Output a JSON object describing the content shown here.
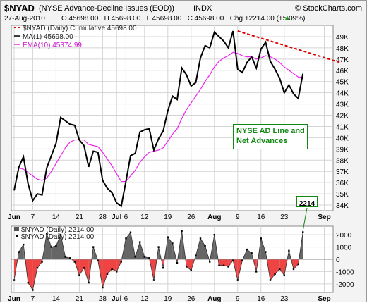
{
  "header": {
    "symbol": "$NYAD",
    "description": "(NYSE Advance-Decline Issues (EOD))",
    "exchange": "INDX",
    "copyright": "© StockCharts.com",
    "date": "27-Aug-2010",
    "quote": "O 45698.00   H 45698.00   L 45698.00   C 45698.00   Chg +2214.00 (+5.09%)",
    "quote_arrow": "▲"
  },
  "legend_main": [
    {
      "label": "$NYAD (Daily) Cumulative 45698.00",
      "color": "#dd0000",
      "style": "dashed"
    },
    {
      "label": "MA(1) 45698.00",
      "color": "#000000",
      "style": "solid"
    },
    {
      "label": "EMA(10) 45374.99",
      "color": "#ee22ee",
      "style": "solid"
    }
  ],
  "legend_lower": [
    {
      "label": "$NYAD (Daily) 2214.00",
      "color": "#555555",
      "style": "box"
    },
    {
      "label": "$NYAD (Daily) 2214.00",
      "color": "#000000",
      "style": "dot"
    }
  ],
  "annotation": {
    "line1": "NYSE AD Line and",
    "line2": "Net Advances",
    "color": "#118811"
  },
  "callout": {
    "value": "2214"
  },
  "chart_data": [
    {
      "type": "line",
      "title": "NYSE AD Line and Net Advances",
      "x": [
        "Jun 1",
        "Jun 2",
        "Jun 3",
        "Jun 4",
        "Jun 7",
        "Jun 8",
        "Jun 9",
        "Jun 10",
        "Jun 11",
        "Jun 14",
        "Jun 15",
        "Jun 16",
        "Jun 17",
        "Jun 18",
        "Jun 21",
        "Jun 22",
        "Jun 23",
        "Jun 24",
        "Jun 25",
        "Jun 28",
        "Jun 29",
        "Jun 30",
        "Jul 1",
        "Jul 2",
        "Jul 6",
        "Jul 7",
        "Jul 8",
        "Jul 9",
        "Jul 12",
        "Jul 13",
        "Jul 14",
        "Jul 15",
        "Jul 16",
        "Jul 19",
        "Jul 20",
        "Jul 21",
        "Jul 22",
        "Jul 23",
        "Jul 26",
        "Jul 27",
        "Jul 28",
        "Jul 29",
        "Jul 30",
        "Aug 2",
        "Aug 3",
        "Aug 4",
        "Aug 5",
        "Aug 6",
        "Aug 9",
        "Aug 10",
        "Aug 11",
        "Aug 12",
        "Aug 13",
        "Aug 16",
        "Aug 17",
        "Aug 18",
        "Aug 19",
        "Aug 20",
        "Aug 23",
        "Aug 24",
        "Aug 25",
        "Aug 26",
        "Aug 27"
      ],
      "series": [
        {
          "name": "MA(1) 45698.00",
          "values": [
            35300,
            37350,
            38300,
            35900,
            34400,
            35000,
            34900,
            37300,
            38400,
            39500,
            41800,
            41500,
            41200,
            41100,
            39800,
            39300,
            37400,
            38800,
            38700,
            36200,
            35500,
            35100,
            34200,
            33900,
            36100,
            38400,
            38600,
            40500,
            40700,
            40800,
            38900,
            39900,
            40600,
            42400,
            43700,
            43400,
            46200,
            45600,
            44600,
            44900,
            47100,
            48200,
            48000,
            49400,
            49000,
            48600,
            48000,
            49500,
            46100,
            45800,
            46700,
            47200,
            46200,
            47900,
            48500,
            46800,
            46100,
            45300,
            44000,
            44700,
            43900,
            43500,
            45698
          ]
        },
        {
          "name": "EMA(10) 45374.99",
          "values": [
            37300,
            37300,
            37200,
            36900,
            36600,
            36300,
            36200,
            36400,
            37000,
            37700,
            38400,
            39100,
            39600,
            39800,
            39800,
            39800,
            39400,
            39300,
            39200,
            38700,
            38100,
            37500,
            36800,
            36100,
            36100,
            36600,
            37100,
            37800,
            38300,
            38700,
            38800,
            38900,
            39100,
            39700,
            40300,
            40800,
            41700,
            42500,
            43100,
            43700,
            44300,
            45000,
            45600,
            46300,
            46800,
            47100,
            47300,
            47600,
            47500,
            47300,
            47200,
            47200,
            47000,
            47100,
            47300,
            47200,
            47000,
            46700,
            46300,
            46000,
            45700,
            45400,
            45375
          ]
        }
      ],
      "trendline": {
        "name": "$NYAD (Daily) Cumulative 45698.00",
        "from": [
          "Aug 9",
          49500
        ],
        "to": [
          "Sep 1",
          46600
        ]
      },
      "xlabel": "",
      "ylabel": "",
      "ylim": [
        33500,
        50000
      ],
      "yticks": [
        34000,
        35000,
        36000,
        37000,
        38000,
        39000,
        40000,
        41000,
        42000,
        43000,
        44000,
        45000,
        46000,
        47000,
        48000,
        49000
      ],
      "ytick_labels": [
        "34K",
        "35K",
        "36K",
        "37K",
        "38K",
        "39K",
        "40K",
        "41K",
        "42K",
        "43K",
        "44K",
        "45K",
        "46K",
        "47K",
        "48K",
        "49K"
      ],
      "xtick_labels": [
        "Jun",
        "7",
        "14",
        "21",
        "28",
        "Jul",
        "6",
        "12",
        "19",
        "26",
        "Aug",
        "9",
        "16",
        "23",
        "Sep"
      ],
      "grid": true
    },
    {
      "type": "area",
      "title": "",
      "x": [
        "Jun 1",
        "Jun 2",
        "Jun 3",
        "Jun 4",
        "Jun 7",
        "Jun 8",
        "Jun 9",
        "Jun 10",
        "Jun 11",
        "Jun 14",
        "Jun 15",
        "Jun 16",
        "Jun 17",
        "Jun 18",
        "Jun 21",
        "Jun 22",
        "Jun 23",
        "Jun 24",
        "Jun 25",
        "Jun 28",
        "Jun 29",
        "Jun 30",
        "Jul 1",
        "Jul 2",
        "Jul 6",
        "Jul 7",
        "Jul 8",
        "Jul 9",
        "Jul 12",
        "Jul 13",
        "Jul 14",
        "Jul 15",
        "Jul 16",
        "Jul 19",
        "Jul 20",
        "Jul 21",
        "Jul 22",
        "Jul 23",
        "Jul 26",
        "Jul 27",
        "Jul 28",
        "Jul 29",
        "Jul 30",
        "Aug 2",
        "Aug 3",
        "Aug 4",
        "Aug 5",
        "Aug 6",
        "Aug 9",
        "Aug 10",
        "Aug 11",
        "Aug 12",
        "Aug 13",
        "Aug 16",
        "Aug 17",
        "Aug 18",
        "Aug 19",
        "Aug 20",
        "Aug 23",
        "Aug 24",
        "Aug 25",
        "Aug 26",
        "Aug 27"
      ],
      "series": [
        {
          "name": "$NYAD (Daily) 2214.00",
          "values": [
            -1700,
            600,
            1200,
            -1900,
            -2500,
            -700,
            -200,
            2100,
            1000,
            1100,
            2000,
            200,
            100,
            -200,
            -1300,
            -700,
            -1900,
            1000,
            -100,
            -2300,
            -1200,
            -800,
            -1000,
            -200,
            1700,
            2200,
            200,
            1400,
            200,
            100,
            -1700,
            1000,
            -700,
            1800,
            1300,
            -300,
            2300,
            -600,
            -900,
            300,
            1700,
            1100,
            -200,
            2000,
            -500,
            -500,
            -600,
            -100,
            -1700,
            -100,
            800,
            500,
            -1000,
            1700,
            600,
            -1700,
            -1200,
            -800,
            -1300,
            700,
            -800,
            -400,
            2214
          ]
        }
      ],
      "ylim": [
        -2700,
        2700
      ],
      "yticks": [
        2000,
        1000,
        0,
        -1000,
        -2000
      ],
      "ytick_labels": [
        "2000",
        "1000",
        "0",
        "-1000",
        "-2000"
      ],
      "xtick_labels": [
        "Jun",
        "7",
        "14",
        "21",
        "28",
        "Jul",
        "6",
        "12",
        "19",
        "26",
        "Aug",
        "9",
        "16",
        "23",
        "Sep"
      ],
      "grid": true
    }
  ]
}
